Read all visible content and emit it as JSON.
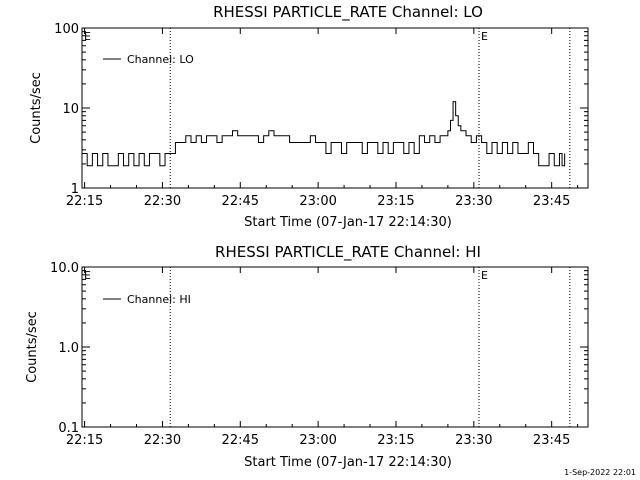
{
  "footer": {
    "date_stamp": "1-Sep-2022 22:01"
  },
  "chart_data": [
    {
      "type": "line",
      "title": "RHESSI PARTICLE_RATE Channel: LO",
      "xlabel": "Start Time (07-Jan-17 22:14:30)",
      "ylabel": "Counts/sec",
      "y_scale": "log",
      "xlim": [
        "22:14:30",
        "23:52:00"
      ],
      "ylim": [
        1,
        100
      ],
      "x_tick_labels": [
        "22:15",
        "22:30",
        "22:45",
        "23:00",
        "23:15",
        "23:30",
        "23:45"
      ],
      "y_tick_labels": [
        "1",
        "10",
        "100"
      ],
      "legend": {
        "position": "top-left",
        "entries": [
          "Channel: LO"
        ]
      },
      "event_markers": [
        {
          "time": "22:31:30",
          "label": ""
        },
        {
          "time": "23:31:00",
          "label": "E"
        },
        {
          "time": "23:48:30",
          "label": ""
        }
      ],
      "left_marker_label": "E",
      "series": [
        {
          "name": "Channel: LO",
          "x": [
            "22:14:30",
            "22:15:30",
            "22:16:30",
            "22:17:30",
            "22:18:30",
            "22:19:30",
            "22:20:30",
            "22:21:30",
            "22:22:30",
            "22:23:30",
            "22:24:30",
            "22:25:30",
            "22:26:30",
            "22:27:30",
            "22:28:30",
            "22:29:30",
            "22:30:30",
            "22:31:30",
            "22:32:30",
            "22:33:30",
            "22:34:30",
            "22:35:30",
            "22:36:30",
            "22:37:30",
            "22:38:30",
            "22:39:30",
            "22:40:30",
            "22:41:30",
            "22:42:30",
            "22:43:30",
            "22:44:30",
            "22:45:30",
            "22:46:30",
            "22:47:30",
            "22:48:30",
            "22:49:30",
            "22:50:30",
            "22:51:30",
            "22:52:30",
            "22:53:30",
            "22:54:30",
            "22:55:30",
            "22:56:30",
            "22:57:30",
            "22:58:30",
            "22:59:30",
            "23:00:30",
            "23:01:30",
            "23:02:30",
            "23:03:30",
            "23:04:30",
            "23:05:30",
            "23:06:30",
            "23:07:30",
            "23:08:30",
            "23:09:30",
            "23:10:30",
            "23:11:30",
            "23:12:30",
            "23:13:30",
            "23:14:30",
            "23:15:30",
            "23:16:30",
            "23:17:30",
            "23:18:30",
            "23:19:30",
            "23:20:30",
            "23:21:30",
            "23:22:30",
            "23:23:30",
            "23:24:30",
            "23:25:00",
            "23:25:30",
            "23:26:00",
            "23:26:30",
            "23:27:00",
            "23:27:30",
            "23:28:30",
            "23:29:30",
            "23:30:30",
            "23:31:30",
            "23:32:30",
            "23:33:30",
            "23:34:30",
            "23:35:30",
            "23:36:30",
            "23:37:30",
            "23:38:30",
            "23:39:30",
            "23:40:30",
            "23:41:30",
            "23:42:30",
            "23:43:30",
            "23:44:30",
            "23:45:30",
            "23:46:30",
            "23:47:00",
            "23:47:30"
          ],
          "y": [
            2.7,
            1.9,
            2.7,
            1.9,
            2.7,
            1.9,
            1.9,
            2.7,
            1.9,
            2.7,
            1.9,
            2.7,
            1.9,
            2.7,
            2.7,
            1.9,
            2.7,
            2.7,
            3.7,
            3.7,
            4.5,
            3.7,
            4.5,
            3.7,
            4.5,
            4.5,
            3.7,
            4.5,
            4.5,
            5.2,
            4.5,
            4.5,
            4.5,
            4.5,
            3.7,
            4.5,
            5.2,
            4.5,
            4.5,
            4.5,
            3.7,
            3.7,
            3.7,
            3.7,
            4.5,
            3.7,
            3.7,
            2.7,
            3.7,
            3.7,
            2.7,
            3.7,
            3.7,
            3.7,
            2.7,
            3.7,
            3.7,
            2.7,
            3.7,
            2.7,
            3.7,
            3.7,
            2.7,
            3.7,
            2.7,
            4.5,
            3.7,
            4.5,
            3.7,
            4.5,
            4.5,
            5.2,
            7.0,
            12.0,
            8.0,
            6.0,
            5.2,
            4.5,
            3.7,
            4.5,
            3.7,
            2.7,
            3.7,
            2.7,
            3.7,
            2.7,
            3.7,
            2.7,
            2.7,
            3.7,
            2.7,
            1.9,
            1.9,
            2.7,
            1.9,
            2.7,
            1.9,
            2.7
          ]
        }
      ]
    },
    {
      "type": "line",
      "title": "RHESSI PARTICLE_RATE Channel: HI",
      "xlabel": "Start Time (07-Jan-17 22:14:30)",
      "ylabel": "Counts/sec",
      "y_scale": "log",
      "xlim": [
        "22:14:30",
        "23:52:00"
      ],
      "ylim": [
        0.1,
        10
      ],
      "x_tick_labels": [
        "22:15",
        "22:30",
        "22:45",
        "23:00",
        "23:15",
        "23:30",
        "23:45"
      ],
      "y_tick_labels": [
        "0.1",
        "1.0",
        "10.0"
      ],
      "legend": {
        "position": "top-left",
        "entries": [
          "Channel: HI"
        ]
      },
      "event_markers": [
        {
          "time": "22:31:30",
          "label": ""
        },
        {
          "time": "23:31:00",
          "label": "E"
        },
        {
          "time": "23:48:30",
          "label": ""
        }
      ],
      "left_marker_label": "E",
      "series": [
        {
          "name": "Channel: HI",
          "x": [],
          "y": []
        }
      ]
    }
  ]
}
